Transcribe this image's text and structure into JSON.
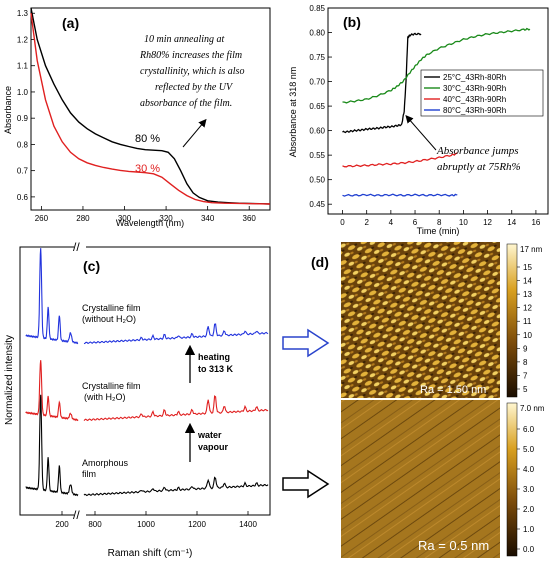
{
  "chart_data": [
    {
      "panel": "(a)",
      "type": "line",
      "xlabel": "Wavelength (nm)",
      "ylabel": "Absorbance",
      "xlim": [
        255,
        370
      ],
      "ylim": [
        0.55,
        1.32
      ],
      "xticks": [
        "260",
        "280",
        "300",
        "320",
        "340",
        "360"
      ],
      "yticks": [
        "0.6",
        "0.7",
        "0.8",
        "0.9",
        "1.0",
        "1.1",
        "1.2",
        "1.3"
      ],
      "annotation": [
        "10 min annealing at",
        "Rh80% increases the film",
        "crystallinity, which is also",
        "reflected by the UV",
        "absorbance of the film."
      ],
      "series": [
        {
          "name": "80 %",
          "color": "#000000",
          "x": [
            255,
            258,
            262,
            266,
            270,
            274,
            278,
            282,
            286,
            290,
            294,
            298,
            302,
            306,
            310,
            314,
            318,
            321,
            324,
            327,
            330,
            333,
            336,
            340,
            345,
            350,
            355,
            360,
            365,
            370
          ],
          "y": [
            1.32,
            1.2,
            1.1,
            1.03,
            0.97,
            0.92,
            0.885,
            0.86,
            0.84,
            0.825,
            0.81,
            0.8,
            0.792,
            0.785,
            0.78,
            0.778,
            0.776,
            0.77,
            0.745,
            0.7,
            0.65,
            0.615,
            0.598,
            0.585,
            0.58,
            0.578,
            0.576,
            0.575,
            0.574,
            0.573
          ]
        },
        {
          "name": "30 %",
          "color": "#e02020",
          "x": [
            255,
            258,
            262,
            266,
            270,
            274,
            278,
            282,
            286,
            290,
            294,
            298,
            302,
            306,
            310,
            314,
            318,
            322,
            326,
            330,
            334,
            338,
            342,
            348,
            355,
            362,
            370
          ],
          "y": [
            1.3,
            1.12,
            0.97,
            0.87,
            0.81,
            0.77,
            0.745,
            0.73,
            0.72,
            0.712,
            0.706,
            0.701,
            0.697,
            0.695,
            0.692,
            0.688,
            0.675,
            0.65,
            0.625,
            0.605,
            0.59,
            0.582,
            0.578,
            0.576,
            0.575,
            0.574,
            0.573
          ]
        }
      ]
    },
    {
      "panel": "(b)",
      "type": "line",
      "xlabel": "Time (min)",
      "ylabel": "Absorbance at 318 nm",
      "xlim": [
        -1.2,
        17
      ],
      "ylim": [
        0.43,
        0.85
      ],
      "xticks": [
        "0",
        "2",
        "4",
        "6",
        "8",
        "10",
        "12",
        "14",
        "16"
      ],
      "yticks": [
        "0.45",
        "0.50",
        "0.55",
        "0.60",
        "0.65",
        "0.70",
        "0.75",
        "0.80",
        "0.85"
      ],
      "annotation": [
        "Absorbance jumps",
        "abruptly at 75Rh%"
      ],
      "series": [
        {
          "name": "25°C_43Rh-80Rh",
          "color": "#000000",
          "x": [
            0,
            0.5,
            1,
            1.5,
            2,
            2.5,
            3,
            3.5,
            4,
            4.5,
            4.9,
            5.1,
            5.25,
            5.4,
            5.6,
            6,
            6.5
          ],
          "y": [
            0.597,
            0.598,
            0.6,
            0.601,
            0.603,
            0.604,
            0.605,
            0.607,
            0.608,
            0.61,
            0.612,
            0.64,
            0.7,
            0.79,
            0.795,
            0.797,
            0.797
          ]
        },
        {
          "name": "30°C_43Rh-90Rh",
          "color": "#1a8a1a",
          "x": [
            0,
            1,
            2,
            3,
            4,
            4.5,
            5,
            5.5,
            6,
            6.5,
            7,
            8,
            9,
            10,
            11,
            12,
            13,
            14,
            15,
            15.5
          ],
          "y": [
            0.657,
            0.66,
            0.664,
            0.672,
            0.682,
            0.69,
            0.7,
            0.716,
            0.731,
            0.745,
            0.755,
            0.768,
            0.777,
            0.786,
            0.792,
            0.797,
            0.8,
            0.803,
            0.806,
            0.807
          ]
        },
        {
          "name": "40°C_43Rh-90Rh",
          "color": "#e02020",
          "x": [
            0,
            1,
            2,
            3,
            4,
            5,
            6,
            7,
            8,
            9,
            9.5
          ],
          "y": [
            0.527,
            0.528,
            0.529,
            0.531,
            0.532,
            0.534,
            0.537,
            0.541,
            0.545,
            0.55,
            0.553
          ]
        },
        {
          "name": "80°C_43Rh-90Rh",
          "color": "#1f3fd0",
          "x": [
            0,
            1,
            2,
            3,
            4,
            5,
            6,
            7,
            8,
            9,
            9.5
          ],
          "y": [
            0.468,
            0.468,
            0.469,
            0.468,
            0.469,
            0.468,
            0.469,
            0.468,
            0.469,
            0.468,
            0.469
          ]
        }
      ]
    },
    {
      "panel": "(c)",
      "type": "line",
      "xlabel": "Raman shift (cm⁻¹)",
      "ylabel": "Normalized intensity",
      "xticks": [
        "200",
        "800",
        "1000",
        "1200",
        "1400"
      ],
      "labels": {
        "crystalline_dry": [
          "Crystalline film",
          "(without H₂O)"
        ],
        "crystalline_wet": [
          "Crystalline film",
          "(with H₂O)"
        ],
        "amorphous": [
          "Amorphous",
          "film"
        ],
        "heating": [
          "heating",
          "to 313 K"
        ],
        "water": [
          "water",
          "vapour"
        ]
      },
      "series": [
        {
          "name": "crystalline_dry",
          "color": "#2233dd"
        },
        {
          "name": "crystalline_wet",
          "color": "#e02020"
        },
        {
          "name": "amorphous",
          "color": "#000000"
        }
      ]
    },
    {
      "panel": "(d)",
      "type": "heatmap",
      "images": [
        {
          "scale_max": "17 nm",
          "scale_ticks": [
            "15",
            "14",
            "13",
            "12",
            "11",
            "10",
            "9",
            "8",
            "7",
            "5"
          ],
          "label": "Ra = 1.50 nm"
        },
        {
          "scale_max": "7.0 nm",
          "scale_ticks": [
            "6.0",
            "5.0",
            "4.0",
            "3.0",
            "2.0",
            "1.0",
            "0.0"
          ],
          "label": "Ra = 0.5 nm"
        }
      ]
    }
  ]
}
